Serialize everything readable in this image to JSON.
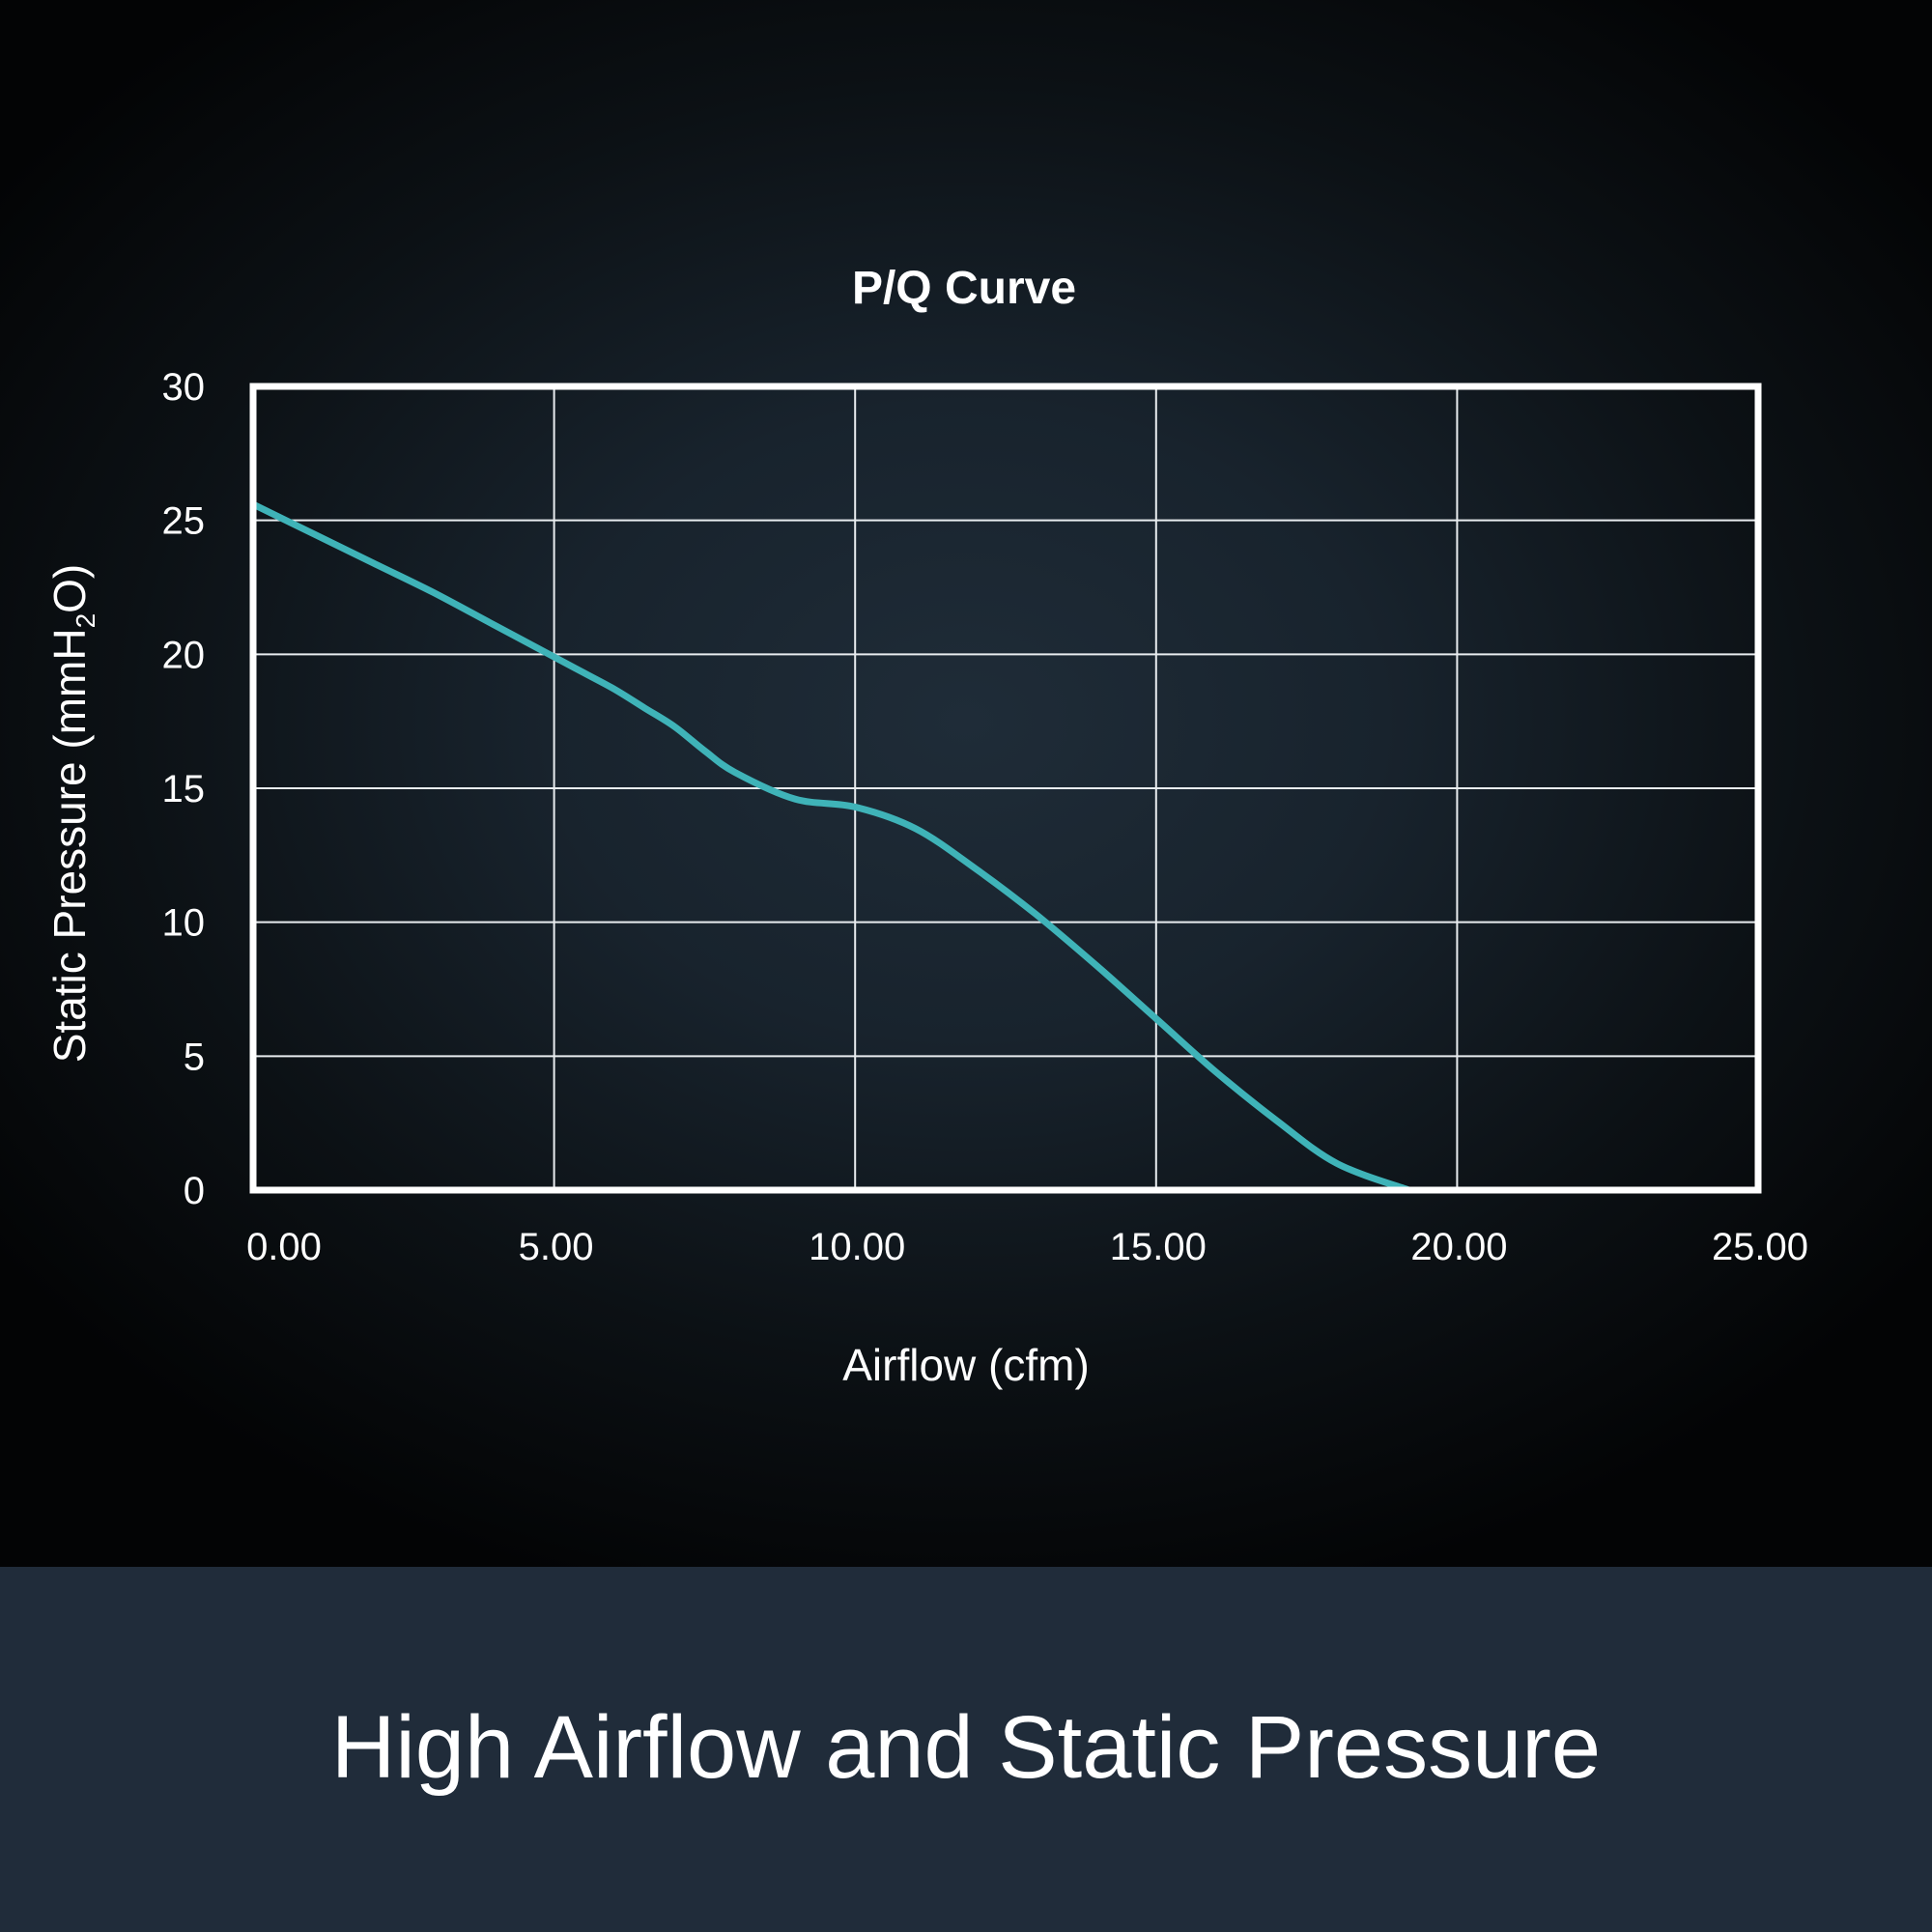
{
  "chart_data": {
    "type": "line",
    "title": "P/Q Curve",
    "xlabel": "Airflow (cfm)",
    "ylabel": "Static Pressure (mmH₂O)",
    "ylabel_parts": {
      "before": "Static Pressure (mmH",
      "sub": "2",
      "after": "O)"
    },
    "xlim": [
      0,
      25
    ],
    "ylim": [
      0,
      30
    ],
    "x_ticks": [
      0,
      5,
      10,
      15,
      20,
      25
    ],
    "x_tick_labels": [
      "0.00",
      "5.00",
      "10.00",
      "15.00",
      "20.00",
      "25.00"
    ],
    "y_ticks": [
      0,
      5,
      10,
      15,
      20,
      25,
      30
    ],
    "y_tick_labels": [
      "0",
      "5",
      "10",
      "15",
      "20",
      "25",
      "30"
    ],
    "grid": true,
    "line_color": "#3fb3b8",
    "series": [
      {
        "x": [
          0,
          1,
          2,
          3,
          4,
          5,
          5.5,
          6,
          6.5,
          7,
          7.5,
          8,
          9,
          10,
          11,
          12,
          13,
          14,
          15,
          16,
          17,
          18,
          19.2
        ],
        "y": [
          25.6,
          24.5,
          23.4,
          22.3,
          21.1,
          19.9,
          19.3,
          18.7,
          18.0,
          17.3,
          16.4,
          15.6,
          14.6,
          14.3,
          13.5,
          12.0,
          10.3,
          8.4,
          6.4,
          4.4,
          2.6,
          1.0,
          0
        ]
      }
    ]
  },
  "banner": {
    "text": "High Airflow and Static Pressure"
  }
}
